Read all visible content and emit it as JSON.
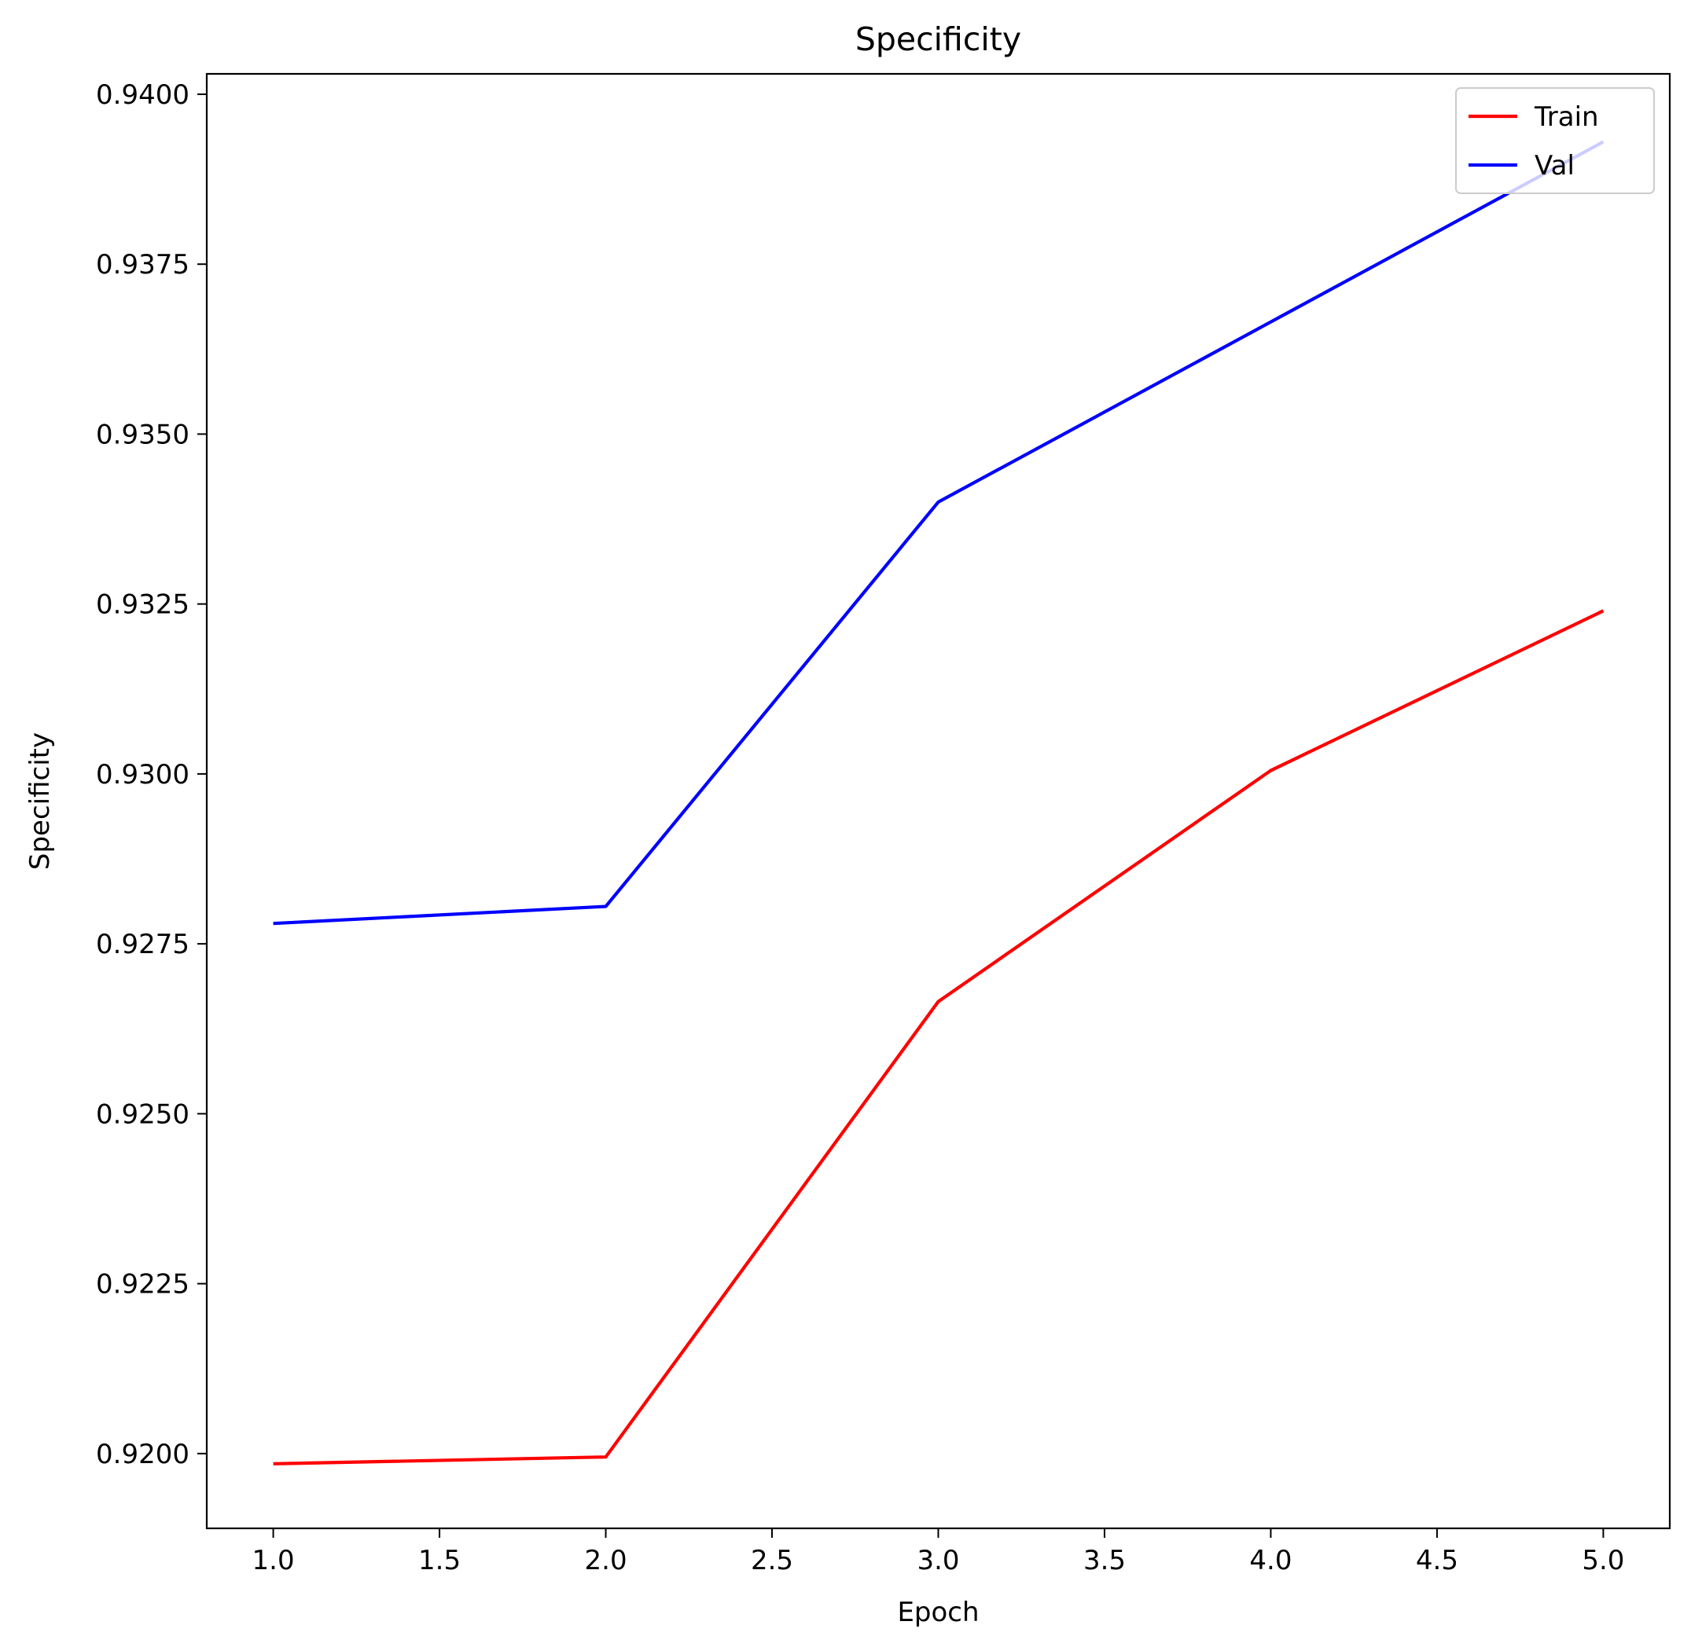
{
  "chart_data": {
    "type": "line",
    "title": "Specificity",
    "xlabel": "Epoch",
    "ylabel": "Specificity",
    "x": [
      1,
      2,
      3,
      4,
      5
    ],
    "xlim": [
      0.8,
      5.2
    ],
    "ylim": [
      0.9189,
      0.9403
    ],
    "xticks": [
      1.0,
      1.5,
      2.0,
      2.5,
      3.0,
      3.5,
      4.0,
      4.5,
      5.0
    ],
    "xtick_labels": [
      "1.0",
      "1.5",
      "2.0",
      "2.5",
      "3.0",
      "3.5",
      "4.0",
      "4.5",
      "5.0"
    ],
    "yticks": [
      0.92,
      0.9225,
      0.925,
      0.9275,
      0.93,
      0.9325,
      0.935,
      0.9375,
      0.94
    ],
    "ytick_labels": [
      "0.9200",
      "0.9225",
      "0.9250",
      "0.9275",
      "0.9300",
      "0.9325",
      "0.9350",
      "0.9375",
      "0.9400"
    ],
    "grid": false,
    "legend_position": "top-right",
    "series": [
      {
        "name": "Train",
        "color": "#ff0000",
        "values": [
          0.91985,
          0.91995,
          0.92665,
          0.93005,
          0.9324
        ]
      },
      {
        "name": "Val",
        "color": "#0000ff",
        "values": [
          0.9278,
          0.92805,
          0.934,
          0.93665,
          0.9393
        ]
      }
    ]
  }
}
